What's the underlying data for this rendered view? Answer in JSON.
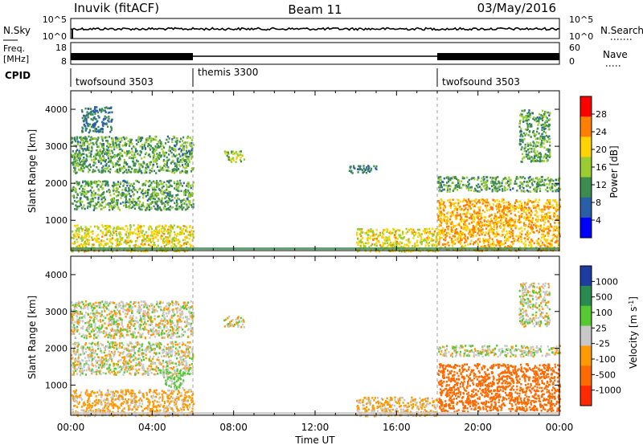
{
  "header": {
    "station": "Inuvik (fitACF)",
    "beam": "Beam 11",
    "date": "03/May/2016"
  },
  "top_panels": {
    "nsky_label": "N.Sky",
    "nsky_ticks": [
      "10^5",
      "10^0"
    ],
    "nsearch_label": "N.Search",
    "nsearch_ticks": [
      "10^5",
      "10^0"
    ],
    "freq_label_line1": "Freq.",
    "freq_label_line2": "[MHz]",
    "freq_ticks": [
      "18",
      "8"
    ],
    "nave_label": "Nave",
    "nave_ticks": [
      "60",
      "0"
    ],
    "cpid_label": "CPID",
    "cpid_segments": [
      {
        "name": "twofsound 3503",
        "start_hour": 0,
        "end_hour": 6
      },
      {
        "name": "themis 3300",
        "start_hour": 6,
        "end_hour": 18
      },
      {
        "name": "twofsound 3503",
        "start_hour": 18,
        "end_hour": 24
      }
    ]
  },
  "power_colorbar": {
    "label": "Power [dB]",
    "ticks": [
      "28",
      "24",
      "20",
      "16",
      "12",
      "8",
      "4"
    ],
    "colors": [
      "#ff0000",
      "#ff7f00",
      "#ffd200",
      "#9acd32",
      "#3c8c50",
      "#2a5fa8",
      "#0000ff"
    ]
  },
  "velocity_colorbar": {
    "label": "Velocity [m s",
    "label_sup": "-1",
    "label_end": "]",
    "ticks": [
      "1000",
      "500",
      "100",
      "25",
      "-25",
      "-100",
      "-500",
      "-1000"
    ],
    "colors": [
      "#1e3ca0",
      "#2a8a50",
      "#55c832",
      "#c8c8c8",
      "#ff9900",
      "#ff6a00",
      "#ff2a00"
    ]
  },
  "chart_data": [
    {
      "type": "heatmap",
      "title": "",
      "ylabel": "Slant Range [km]",
      "xlabel": "",
      "xlim": [
        0,
        24
      ],
      "ylim": [
        180,
        4500
      ],
      "yticks": [
        1000,
        2000,
        3000,
        4000
      ],
      "legend": "right colorbar",
      "colorbar_label": "Power [dB]",
      "clim": [
        0,
        32
      ],
      "regions": [
        {
          "t0": 0.0,
          "t1": 6.0,
          "r0": 180,
          "r1": 900,
          "value": 20
        },
        {
          "t0": 0.0,
          "t1": 6.0,
          "r0": 1300,
          "r1": 2100,
          "value": 12
        },
        {
          "t0": 0.0,
          "t1": 6.0,
          "r0": 2300,
          "r1": 3300,
          "value": 12
        },
        {
          "t0": 0.5,
          "t1": 2.0,
          "r0": 3400,
          "r1": 4100,
          "value": 8
        },
        {
          "t0": 7.5,
          "t1": 8.5,
          "r0": 2600,
          "r1": 2900,
          "value": 16
        },
        {
          "t0": 13.5,
          "t1": 15.0,
          "r0": 2300,
          "r1": 2500,
          "value": 8
        },
        {
          "t0": 14.0,
          "t1": 18.0,
          "r0": 180,
          "r1": 800,
          "value": 20
        },
        {
          "t0": 18.0,
          "t1": 24.0,
          "r0": 200,
          "r1": 1600,
          "value": 24
        },
        {
          "t0": 18.0,
          "t1": 24.0,
          "r0": 1800,
          "r1": 2200,
          "value": 12
        },
        {
          "t0": 22.0,
          "t1": 23.5,
          "r0": 2600,
          "r1": 4000,
          "value": 12
        }
      ]
    },
    {
      "type": "heatmap",
      "title": "",
      "ylabel": "Slant Range [km]",
      "xlabel": "Time UT",
      "xlim": [
        0,
        24
      ],
      "ylim": [
        180,
        4500
      ],
      "xticks": [
        "00:00",
        "04:00",
        "08:00",
        "12:00",
        "16:00",
        "20:00",
        "00:00"
      ],
      "yticks": [
        1000,
        2000,
        3000,
        4000
      ],
      "legend": "right colorbar",
      "colorbar_label": "Velocity [m s-1]",
      "regions": [
        {
          "t0": 0.0,
          "t1": 6.0,
          "r0": 180,
          "r1": 900,
          "value": -100
        },
        {
          "t0": 0.0,
          "t1": 6.0,
          "r0": 1300,
          "r1": 2200,
          "value": 0
        },
        {
          "t0": 0.0,
          "t1": 6.0,
          "r0": 2300,
          "r1": 3300,
          "value": 0
        },
        {
          "t0": 4.5,
          "t1": 5.5,
          "r0": 900,
          "r1": 1400,
          "value": 100
        },
        {
          "t0": 7.5,
          "t1": 8.5,
          "r0": 2600,
          "r1": 2900,
          "value": 0
        },
        {
          "t0": 14.0,
          "t1": 18.0,
          "r0": 180,
          "r1": 700,
          "value": -100
        },
        {
          "t0": 18.0,
          "t1": 24.0,
          "r0": 300,
          "r1": 1600,
          "value": -500
        },
        {
          "t0": 18.0,
          "t1": 24.0,
          "r0": 1800,
          "r1": 2100,
          "value": 0
        },
        {
          "t0": 22.0,
          "t1": 23.5,
          "r0": 2600,
          "r1": 3800,
          "value": 0
        }
      ]
    }
  ]
}
